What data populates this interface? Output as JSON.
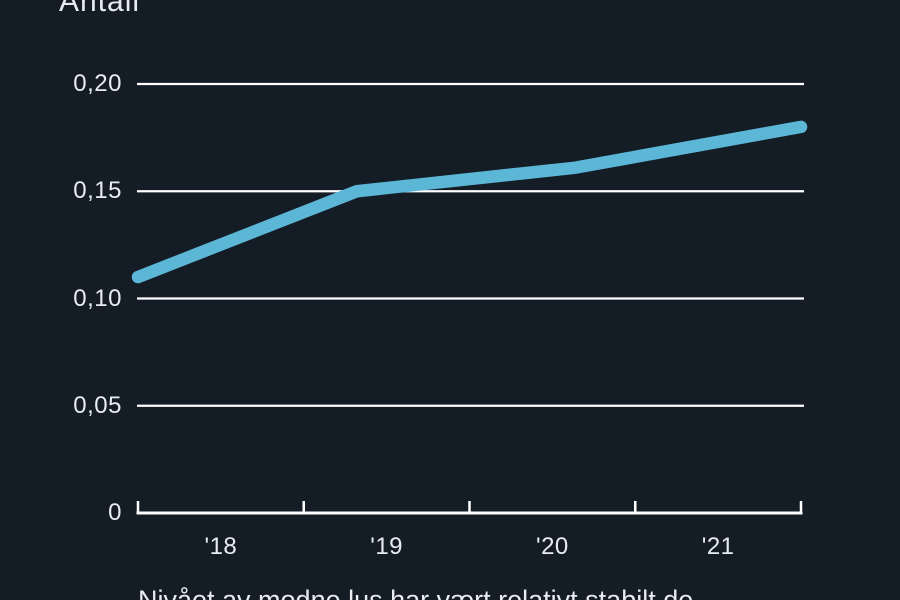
{
  "colors": {
    "background": "#141C26",
    "line": "#5CB6D6",
    "grid": "#FFFFFF",
    "text": "#E8ECF0"
  },
  "chart_data": {
    "type": "line",
    "title": "Antall",
    "xlim": [
      2018,
      2022
    ],
    "ylim": [
      0,
      0.2
    ],
    "grid": "horizontal-only",
    "legend": "none",
    "y_tick_values": [
      0.2,
      0.15,
      0.1,
      0.05,
      0
    ],
    "y_tick_labels": [
      "0,20",
      "0,15",
      "0,10",
      "0,05",
      "0"
    ],
    "x_axis_tick_marks": [
      2018,
      2019,
      2020,
      2021,
      2022
    ],
    "x_tick_positions": [
      2018.5,
      2019.5,
      2020.5,
      2021.5
    ],
    "x_tick_labels": [
      "'18",
      "'19",
      "'20",
      "'21"
    ],
    "series": [
      {
        "name": "Antall",
        "color": "#5CB6D6",
        "points": [
          {
            "x": 2018.0,
            "y": 0.11
          },
          {
            "x": 2019.32,
            "y": 0.15
          },
          {
            "x": 2020.64,
            "y": 0.161
          },
          {
            "x": 2022.0,
            "y": 0.18
          }
        ]
      }
    ]
  },
  "caption": {
    "text": "Nivået av modne lus har vært relativt stabilt de"
  }
}
